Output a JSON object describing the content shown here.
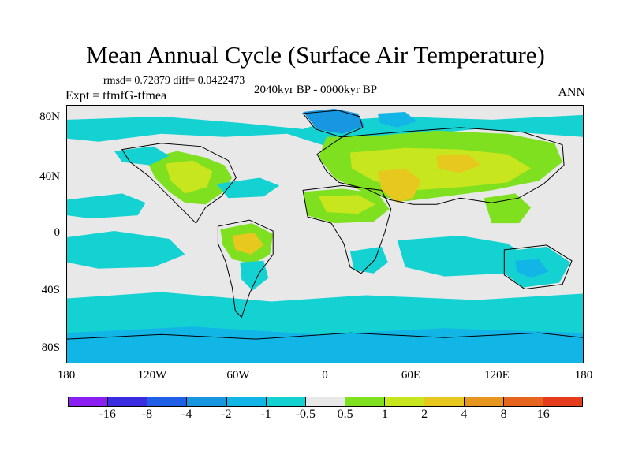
{
  "title": "Mean Annual Cycle (Surface Air Temperature)",
  "stats": "rmsd= 0.72879 diff= 0.0422473",
  "experiment": "Expt = tfmfG-tfmea",
  "period": "2040kyr BP - 0000kyr BP",
  "season": "ANN",
  "y_ticks": [
    "80N",
    "40N",
    "0",
    "40S",
    "80S"
  ],
  "x_ticks": [
    "180",
    "120W",
    "60W",
    "0",
    "60E",
    "120E",
    "180"
  ],
  "colorbar": {
    "colors": [
      "#8b1ef0",
      "#3a2ce0",
      "#1e5fe6",
      "#1896e0",
      "#12b6e6",
      "#14d2d2",
      "#e8e8e8",
      "#7ee01e",
      "#c8e61e",
      "#e6c81e",
      "#e6961e",
      "#e6641e",
      "#e63c1e"
    ],
    "labels": [
      "-16",
      "-8",
      "-4",
      "-2",
      "-1",
      "-0.5",
      "0.5",
      "1",
      "2",
      "4",
      "8",
      "16"
    ]
  },
  "map_colors": {
    "neutral": "#e8e8e8",
    "cool_1": "#14d2d2",
    "cool_2": "#12b6e6",
    "cool_3": "#1896e0",
    "warm_1": "#7ee01e",
    "warm_2": "#c8e61e",
    "warm_3": "#e6c81e",
    "coast": "#000000"
  }
}
